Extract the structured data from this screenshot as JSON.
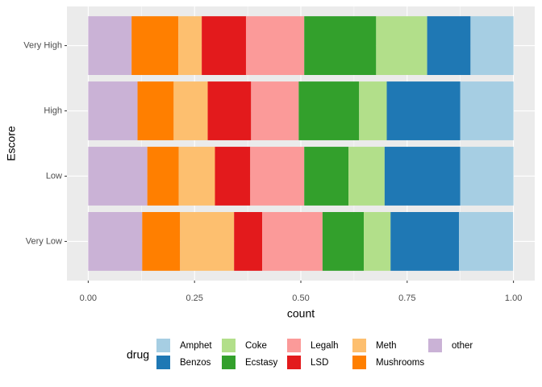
{
  "chart_data": {
    "type": "stacked-bar-horizontal",
    "x_label": "count",
    "y_label": "Escore",
    "legend_title": "drug",
    "categories": [
      "Very Low",
      "Low",
      "High",
      "Very High"
    ],
    "series": [
      {
        "name": "Amphet",
        "color": "#a6cee3",
        "values": [
          0.127,
          0.125,
          0.125,
          0.101
        ]
      },
      {
        "name": "Benzos",
        "color": "#1f78b4",
        "values": [
          0.161,
          0.178,
          0.173,
          0.102
        ]
      },
      {
        "name": "Coke",
        "color": "#b2df8a",
        "values": [
          0.063,
          0.085,
          0.065,
          0.12
        ]
      },
      {
        "name": "Ecstasy",
        "color": "#33a02c",
        "values": [
          0.097,
          0.104,
          0.142,
          0.169
        ]
      },
      {
        "name": "Legalh",
        "color": "#fb9a99",
        "values": [
          0.142,
          0.127,
          0.112,
          0.137
        ]
      },
      {
        "name": "LSD",
        "color": "#e31a1c",
        "values": [
          0.066,
          0.083,
          0.102,
          0.104
        ]
      },
      {
        "name": "Meth",
        "color": "#fdbf6f",
        "values": [
          0.127,
          0.085,
          0.08,
          0.055
        ]
      },
      {
        "name": "Mushrooms",
        "color": "#ff7f00",
        "values": [
          0.089,
          0.074,
          0.085,
          0.11
        ]
      },
      {
        "name": "other",
        "color": "#cab2d6",
        "values": [
          0.127,
          0.139,
          0.116,
          0.102
        ]
      }
    ],
    "xlim": [
      -0.05,
      1.05
    ],
    "xticks": [
      {
        "value": 0,
        "label": "0.00"
      },
      {
        "value": 0.25,
        "label": "0.25"
      },
      {
        "value": 0.5,
        "label": "0.50"
      },
      {
        "value": 0.75,
        "label": "0.75"
      },
      {
        "value": 1,
        "label": "1.00"
      }
    ],
    "grid": true,
    "legend_position": "bottom"
  }
}
